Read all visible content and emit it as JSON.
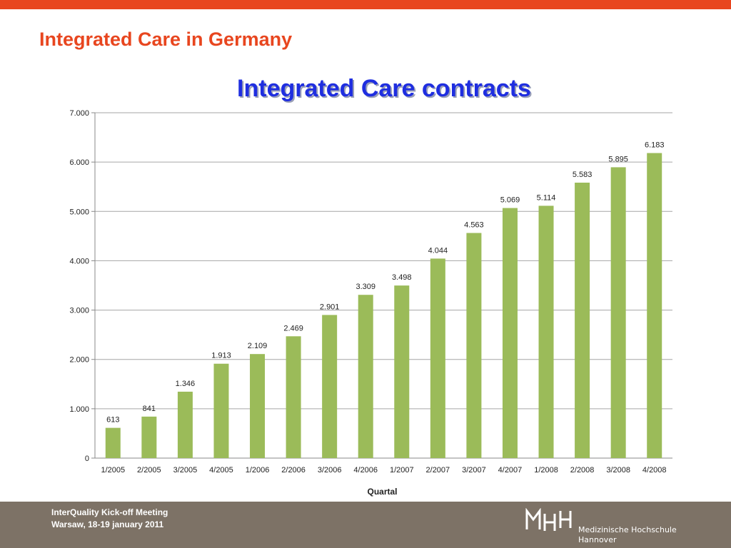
{
  "slide": {
    "title": "Integrated Care in Germany",
    "accent_color": "#e8461f"
  },
  "footer": {
    "line1": "InterQuality Kick-off Meeting",
    "line2": "Warsaw, 18-19 january 2011",
    "logo_text_line1": "Medizinische Hochschule",
    "logo_text_line2": "Hannover",
    "logo_icon": "mhh-logo-icon"
  },
  "chart_data": {
    "type": "bar",
    "title": "Integrated Care contracts",
    "xlabel": "Quartal",
    "ylabel": "",
    "categories": [
      "1/2005",
      "2/2005",
      "3/2005",
      "4/2005",
      "1/2006",
      "2/2006",
      "3/2006",
      "4/2006",
      "1/2007",
      "2/2007",
      "3/2007",
      "4/2007",
      "1/2008",
      "2/2008",
      "3/2008",
      "4/2008"
    ],
    "values": [
      613,
      841,
      1346,
      1913,
      2109,
      2469,
      2901,
      3309,
      3498,
      4044,
      4563,
      5069,
      5114,
      5583,
      5895,
      6183
    ],
    "value_labels": [
      "613",
      "841",
      "1.346",
      "1.913",
      "2.109",
      "2.469",
      "2.901",
      "3.309",
      "3.498",
      "4.044",
      "4.563",
      "5.069",
      "5.114",
      "5.583",
      "5.895",
      "6.183"
    ],
    "ylim": [
      0,
      7000
    ],
    "yticks": [
      0,
      1000,
      2000,
      3000,
      4000,
      5000,
      6000,
      7000
    ],
    "ytick_labels": [
      "0",
      "1.000",
      "2.000",
      "3.000",
      "4.000",
      "5.000",
      "6.000",
      "7.000"
    ],
    "grid": true,
    "bar_color": "#9bbb59",
    "title_color": "#1f2ee0"
  }
}
